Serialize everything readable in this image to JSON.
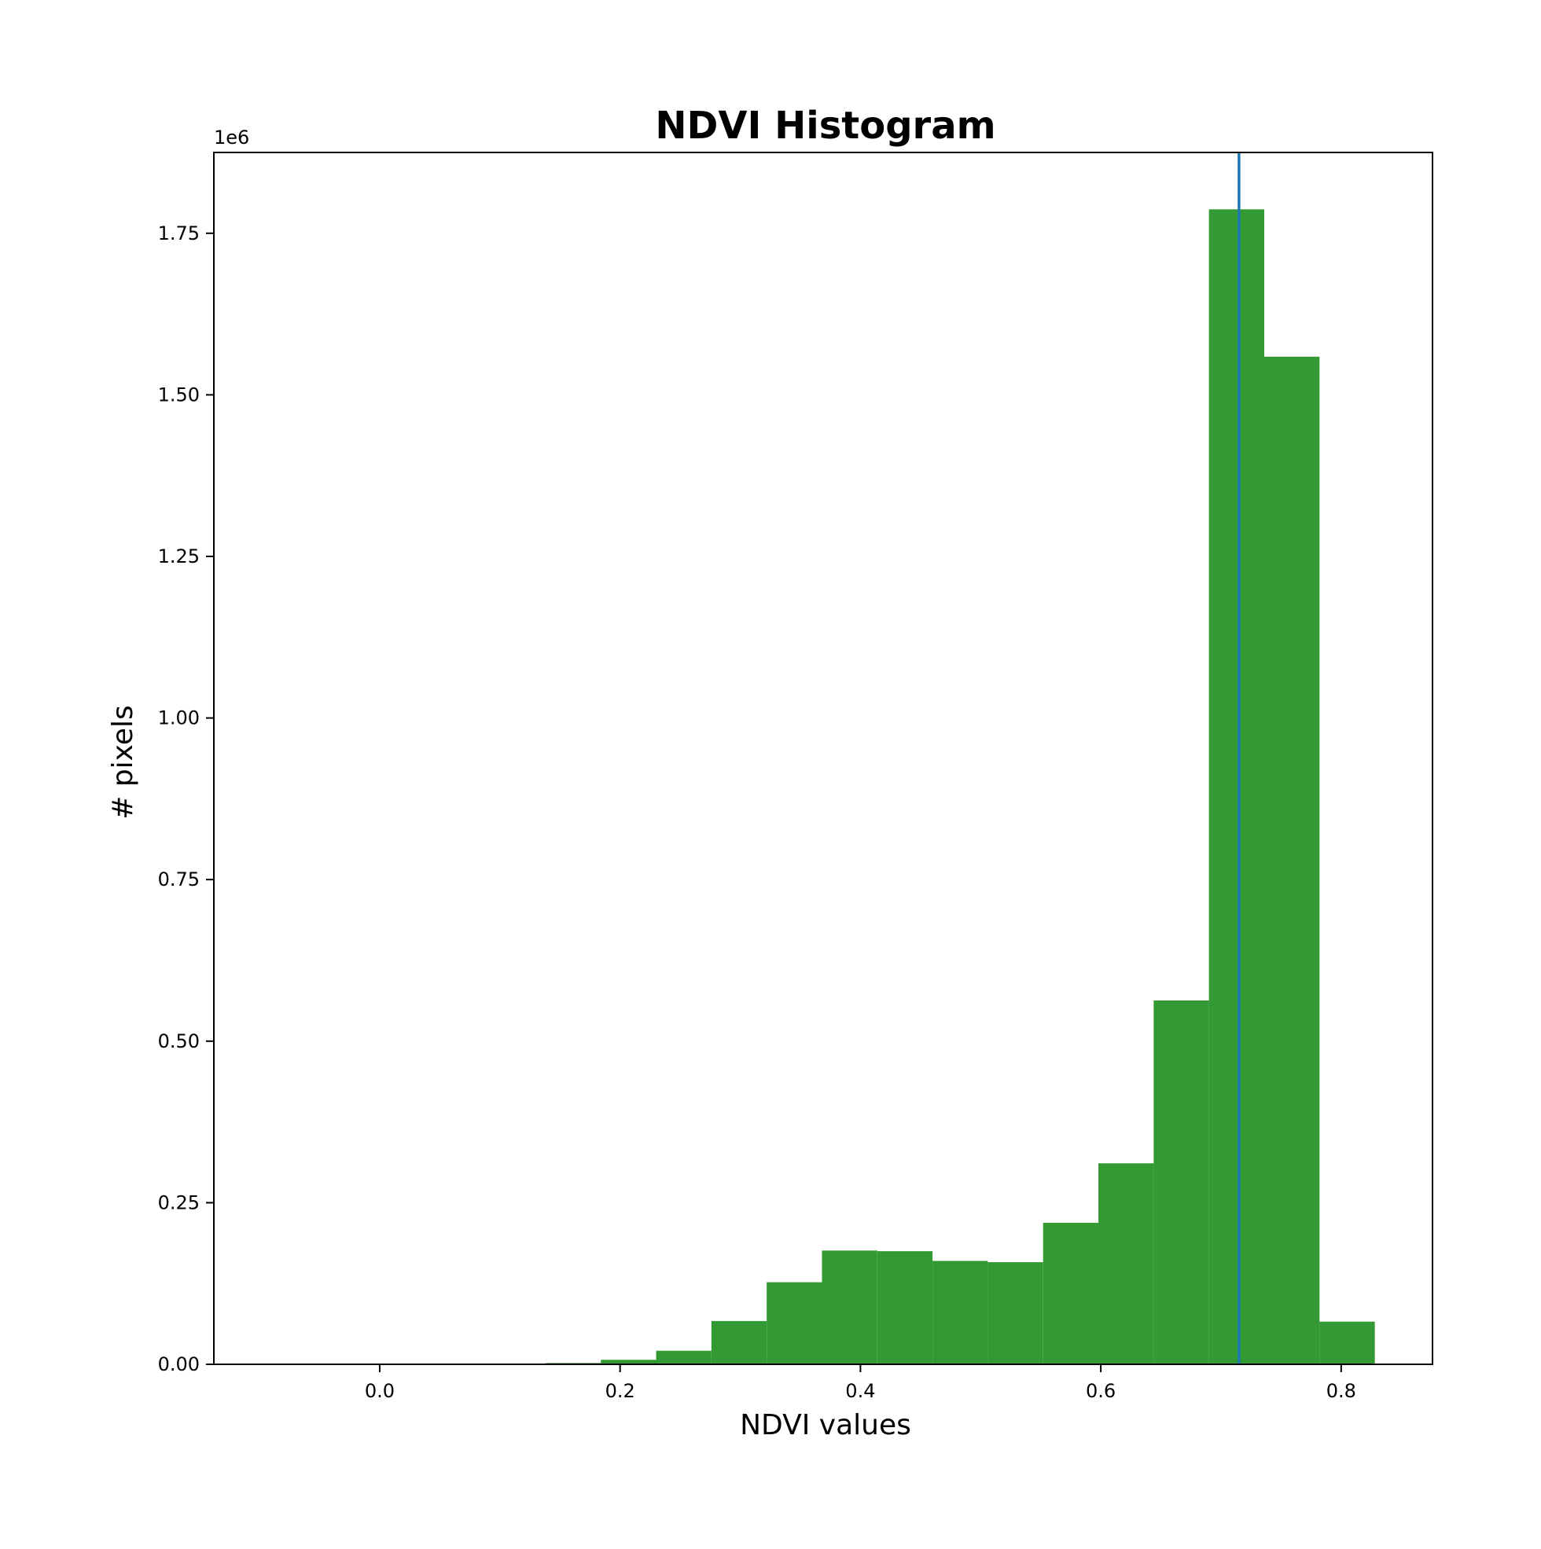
{
  "chart_data": {
    "type": "bar",
    "title": "NDVI Histogram",
    "xlabel": "NDVI values",
    "ylabel": "# pixels",
    "y_offset_label": "1e6",
    "xlim": [
      -0.138,
      0.876
    ],
    "ylim": [
      0,
      1.875
    ],
    "x_ticks": [
      0.0,
      0.2,
      0.4,
      0.6,
      0.8
    ],
    "x_tick_labels": [
      "0.0",
      "0.2",
      "0.4",
      "0.6",
      "0.8"
    ],
    "y_ticks": [
      0.0,
      0.25,
      0.5,
      0.75,
      1.0,
      1.25,
      1.5,
      1.75
    ],
    "y_tick_labels": [
      "0.00",
      "0.25",
      "0.50",
      "0.75",
      "1.00",
      "1.25",
      "1.50",
      "1.75"
    ],
    "bin_edges": [
      -0.092,
      -0.046,
      0.0,
      0.046,
      0.092,
      0.138,
      0.184,
      0.23,
      0.276,
      0.322,
      0.368,
      0.414,
      0.46,
      0.506,
      0.552,
      0.598,
      0.644,
      0.69,
      0.736,
      0.782,
      0.828
    ],
    "values": [
      0,
      0,
      0,
      0,
      0,
      0.002,
      0.007,
      0.021,
      0.067,
      0.127,
      0.176,
      0.175,
      0.16,
      0.158,
      0.219,
      0.311,
      0.563,
      1.787,
      1.559,
      0.066
    ],
    "vline_x": 0.715,
    "bar_color": "#339933",
    "vline_color": "#1f77b4",
    "grid": false
  }
}
